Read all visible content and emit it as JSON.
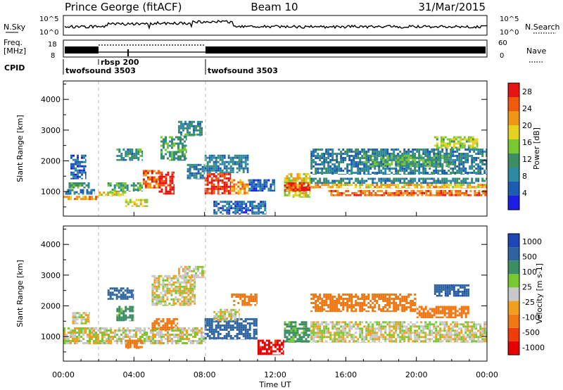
{
  "header": {
    "station": "Prince George (fitACF)",
    "beam": "Beam 10",
    "date": "31/Mar/2015"
  },
  "top_panels": {
    "nsky_label": "N.Sky",
    "nsky_ticks": [
      "10^5",
      "10^0"
    ],
    "nsearch_label": "N.Search",
    "nsearch_ticks": [
      "10^5",
      "10^0"
    ],
    "freq_label_line1": "Freq.",
    "freq_label_line2": "[MHz]",
    "freq_ticks": [
      "18",
      "8"
    ],
    "nave_label": "Nave",
    "nave_ticks": [
      "60",
      "0"
    ],
    "cpid_label": "CPID",
    "cpid_segments": [
      {
        "name": "twofsound 3503",
        "start_hour": 0.0
      },
      {
        "name": "rbsp 200",
        "start_hour": 2.0
      },
      {
        "name": "twofsound 3503",
        "start_hour": 8.0
      }
    ]
  },
  "chart_data": [
    {
      "type": "heatmap",
      "title": "",
      "xlabel": "",
      "ylabel": "Slant Range [km]",
      "xlim": [
        0,
        24
      ],
      "ylim": [
        200,
        4600
      ],
      "yticks": [
        "1000",
        "2000",
        "3000",
        "4000"
      ],
      "colorbar": {
        "label": "Power [dB]",
        "ticks": [
          "4",
          "8",
          "12",
          "16",
          "20",
          "24",
          "28"
        ],
        "range": [
          0,
          30
        ],
        "colors": [
          "#1e1ee6",
          "#1e5cb4",
          "#2e8aa0",
          "#3c8c64",
          "#78c832",
          "#e6d21e",
          "#f09614",
          "#f05a0a",
          "#e61414"
        ]
      },
      "bands": [
        {
          "x0": 0.0,
          "x1": 2.0,
          "y0": 720,
          "y1": 860,
          "value": 22
        },
        {
          "x0": 0.1,
          "x1": 1.8,
          "y0": 900,
          "y1": 1080,
          "value": 8
        },
        {
          "x0": 0.3,
          "x1": 1.5,
          "y0": 1100,
          "y1": 1300,
          "value": 12
        },
        {
          "x0": 0.4,
          "x1": 1.3,
          "y0": 1400,
          "y1": 2200,
          "value": 6
        },
        {
          "x0": 2.0,
          "x1": 3.6,
          "y0": 850,
          "y1": 1000,
          "value": 18
        },
        {
          "x0": 2.5,
          "x1": 4.5,
          "y0": 1000,
          "y1": 1300,
          "value": 12
        },
        {
          "x0": 3.0,
          "x1": 4.5,
          "y0": 2000,
          "y1": 2400,
          "value": 10
        },
        {
          "x0": 3.5,
          "x1": 4.8,
          "y0": 500,
          "y1": 760,
          "value": 18
        },
        {
          "x0": 4.5,
          "x1": 5.5,
          "y0": 1100,
          "y1": 1700,
          "value": 24
        },
        {
          "x0": 5.4,
          "x1": 6.3,
          "y0": 900,
          "y1": 1650,
          "value": 29
        },
        {
          "x0": 5.5,
          "x1": 7.0,
          "y0": 2000,
          "y1": 2800,
          "value": 12
        },
        {
          "x0": 6.5,
          "x1": 7.9,
          "y0": 2800,
          "y1": 3300,
          "value": 10
        },
        {
          "x0": 7.0,
          "x1": 8.0,
          "y0": 1400,
          "y1": 1900,
          "value": 8
        },
        {
          "x0": 8.0,
          "x1": 9.5,
          "y0": 900,
          "y1": 1600,
          "value": 28
        },
        {
          "x0": 9.5,
          "x1": 10.5,
          "y0": 900,
          "y1": 1400,
          "value": 22
        },
        {
          "x0": 8.0,
          "x1": 10.5,
          "y0": 1600,
          "y1": 2200,
          "value": 8
        },
        {
          "x0": 8.5,
          "x1": 11.5,
          "y0": 250,
          "y1": 700,
          "value": 6
        },
        {
          "x0": 10.5,
          "x1": 12.0,
          "y0": 1000,
          "y1": 1400,
          "value": 6
        },
        {
          "x0": 12.5,
          "x1": 14.0,
          "y0": 800,
          "y1": 1600,
          "value": 18
        },
        {
          "x0": 12.5,
          "x1": 14.0,
          "y0": 1000,
          "y1": 1300,
          "value": 27
        },
        {
          "x0": 14.0,
          "x1": 24.0,
          "y0": 1250,
          "y1": 1450,
          "value": 9
        },
        {
          "x0": 14.0,
          "x1": 24.0,
          "y0": 1100,
          "y1": 1250,
          "value": 20
        },
        {
          "x0": 15.0,
          "x1": 24.0,
          "y0": 850,
          "y1": 1050,
          "value": 25
        },
        {
          "x0": 14.0,
          "x1": 24.0,
          "y0": 1550,
          "y1": 2400,
          "value": 8
        },
        {
          "x0": 17.0,
          "x1": 22.0,
          "y0": 1800,
          "y1": 2200,
          "value": 12
        },
        {
          "x0": 21.0,
          "x1": 23.5,
          "y0": 2400,
          "y1": 2800,
          "value": 16
        }
      ]
    },
    {
      "type": "heatmap",
      "title": "",
      "xlabel": "Time UT",
      "ylabel": "Slant Range [km]",
      "xlim": [
        0,
        24
      ],
      "ylim": [
        200,
        4600
      ],
      "xticks": [
        "00:00",
        "04:00",
        "08:00",
        "12:00",
        "16:00",
        "20:00",
        "00:00"
      ],
      "yticks": [
        "1000",
        "2000",
        "3000",
        "4000"
      ],
      "colorbar": {
        "label": "Velocity [m s-1]",
        "ticks": [
          "1000",
          "500",
          "100",
          "25",
          "-25",
          "-100",
          "-500",
          "-1000"
        ],
        "colors": [
          "#1e46b4",
          "#2d64a0",
          "#3c8c64",
          "#78c832",
          "#c8c8c8",
          "#f0a01e",
          "#f07814",
          "#f03c0a",
          "#e60000"
        ]
      },
      "bands": [
        {
          "x0": 0.0,
          "x1": 8.0,
          "y0": 750,
          "y1": 1300,
          "value": 0
        },
        {
          "x0": 0.5,
          "x1": 1.5,
          "y0": 1400,
          "y1": 1800,
          "value": 0
        },
        {
          "x0": 2.5,
          "x1": 4.0,
          "y0": 2200,
          "y1": 2600,
          "value": 500
        },
        {
          "x0": 3.0,
          "x1": 4.0,
          "y0": 1500,
          "y1": 2000,
          "value": 100
        },
        {
          "x0": 3.5,
          "x1": 4.5,
          "y0": 600,
          "y1": 900,
          "value": -200
        },
        {
          "x0": 5.0,
          "x1": 6.5,
          "y0": 1200,
          "y1": 1600,
          "value": -200
        },
        {
          "x0": 5.0,
          "x1": 7.5,
          "y0": 2000,
          "y1": 3000,
          "value": 0
        },
        {
          "x0": 6.5,
          "x1": 8.0,
          "y0": 2900,
          "y1": 3300,
          "value": 0
        },
        {
          "x0": 8.0,
          "x1": 11.0,
          "y0": 900,
          "y1": 1600,
          "value": 400
        },
        {
          "x0": 8.5,
          "x1": 10.0,
          "y0": 1500,
          "y1": 1900,
          "value": 0
        },
        {
          "x0": 9.5,
          "x1": 11.0,
          "y0": 2000,
          "y1": 2400,
          "value": -200
        },
        {
          "x0": 11.0,
          "x1": 12.5,
          "y0": 400,
          "y1": 900,
          "value": -800
        },
        {
          "x0": 12.5,
          "x1": 14.0,
          "y0": 800,
          "y1": 1500,
          "value": 100
        },
        {
          "x0": 14.0,
          "x1": 24.0,
          "y0": 800,
          "y1": 1500,
          "value": 0
        },
        {
          "x0": 14.0,
          "x1": 20.0,
          "y0": 1800,
          "y1": 2400,
          "value": -200
        },
        {
          "x0": 20.0,
          "x1": 23.0,
          "y0": 1600,
          "y1": 2000,
          "value": -200
        },
        {
          "x0": 21.0,
          "x1": 23.0,
          "y0": 2300,
          "y1": 2700,
          "value": 700
        }
      ]
    }
  ]
}
